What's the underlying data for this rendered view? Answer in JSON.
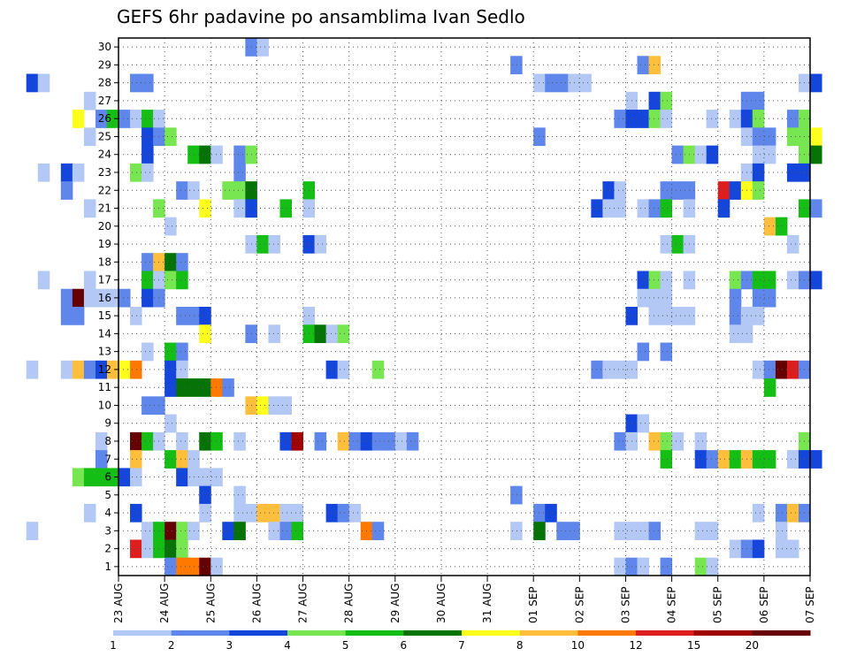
{
  "chart_data": {
    "type": "heatmap",
    "title": "GEFS 6hr padavine po ansamblima Ivan Sedlo",
    "xlabel": "",
    "ylabel": "",
    "x_tick_labels": [
      "23 AUG",
      "24 AUG",
      "25 AUG",
      "26 AUG",
      "27 AUG",
      "28 AUG",
      "29 AUG",
      "30 AUG",
      "31 AUG",
      "01 SEP",
      "02 SEP",
      "03 SEP",
      "04 SEP",
      "05 SEP",
      "06 SEP",
      "07 SEP"
    ],
    "x_time_steps_per_day": 4,
    "y_ticks": [
      1,
      2,
      3,
      4,
      5,
      6,
      7,
      8,
      9,
      10,
      11,
      12,
      13,
      14,
      15,
      16,
      17,
      18,
      19,
      20,
      21,
      22,
      23,
      24,
      25,
      26,
      27,
      28,
      29,
      30
    ],
    "grid": true,
    "colorbar": {
      "position": "bottom",
      "labels": [
        "1",
        "2",
        "3",
        "4",
        "5",
        "6",
        "7",
        "8",
        "10",
        "12",
        "15",
        "20"
      ],
      "colors": [
        "#b4c8f5",
        "#5f87eb",
        "#1446dc",
        "#78e650",
        "#14be14",
        "#057305",
        "#ffff1e",
        "#ffbe3c",
        "#ff7800",
        "#dc1e1e",
        "#a00000",
        "#640000"
      ]
    },
    "cells": [
      [
        30,
        25.75,
        1
      ],
      [
        30,
        26,
        0
      ],
      [
        29,
        31.5,
        1
      ],
      [
        29,
        34.25,
        1
      ],
      [
        29,
        34.5,
        7
      ],
      [
        28,
        21,
        2
      ],
      [
        28,
        21.25,
        0
      ],
      [
        28,
        23.25,
        1
      ],
      [
        28,
        23.5,
        1
      ],
      [
        28,
        32,
        0
      ],
      [
        28,
        32.25,
        1
      ],
      [
        28,
        32.5,
        1
      ],
      [
        28,
        32.75,
        0
      ],
      [
        28,
        33,
        0
      ],
      [
        28,
        37.75,
        0
      ],
      [
        28,
        38,
        2
      ],
      [
        27,
        22.25,
        0
      ],
      [
        27,
        34,
        0
      ],
      [
        27,
        34.5,
        2
      ],
      [
        27,
        34.75,
        3
      ],
      [
        27,
        36.5,
        1
      ],
      [
        27,
        36.75,
        1
      ],
      [
        26,
        19.5,
        0
      ],
      [
        26,
        22,
        6
      ],
      [
        26,
        22.5,
        1
      ],
      [
        26,
        22.75,
        4
      ],
      [
        26,
        23,
        1
      ],
      [
        26,
        23.25,
        0
      ],
      [
        26,
        23.5,
        4
      ],
      [
        26,
        23.75,
        0
      ],
      [
        26,
        33.75,
        1
      ],
      [
        26,
        34,
        2
      ],
      [
        26,
        34.25,
        2
      ],
      [
        26,
        34.5,
        3
      ],
      [
        26,
        34.75,
        0
      ],
      [
        26,
        35.75,
        0
      ],
      [
        26,
        36.25,
        0
      ],
      [
        26,
        36.5,
        2
      ],
      [
        26,
        36.75,
        3
      ],
      [
        26,
        37.5,
        1
      ],
      [
        26,
        37.75,
        3
      ],
      [
        25,
        22.25,
        0
      ],
      [
        25,
        23.5,
        2
      ],
      [
        25,
        23.75,
        1
      ],
      [
        25,
        24,
        3
      ],
      [
        25,
        32,
        1
      ],
      [
        25,
        36.5,
        0
      ],
      [
        25,
        36.75,
        1
      ],
      [
        25,
        37,
        1
      ],
      [
        25,
        37.5,
        3
      ],
      [
        25,
        37.75,
        3
      ],
      [
        25,
        38,
        6
      ],
      [
        24,
        23.5,
        2
      ],
      [
        24,
        24.5,
        4
      ],
      [
        24,
        24.75,
        5
      ],
      [
        24,
        25,
        0
      ],
      [
        24,
        25.5,
        1
      ],
      [
        24,
        25.75,
        3
      ],
      [
        24,
        35,
        1
      ],
      [
        24,
        35.25,
        3
      ],
      [
        24,
        35.5,
        0
      ],
      [
        24,
        35.75,
        2
      ],
      [
        24,
        36.75,
        0
      ],
      [
        24,
        37,
        0
      ],
      [
        24,
        37.75,
        3
      ],
      [
        24,
        38,
        5
      ],
      [
        23,
        21.25,
        0
      ],
      [
        23,
        21.75,
        2
      ],
      [
        23,
        22,
        0
      ],
      [
        23,
        23.25,
        3
      ],
      [
        23,
        23.5,
        0
      ],
      [
        23,
        25.5,
        1
      ],
      [
        23,
        36.5,
        0
      ],
      [
        23,
        36.75,
        2
      ],
      [
        23,
        37.5,
        2
      ],
      [
        23,
        37.75,
        2
      ],
      [
        22,
        19.25,
        0
      ],
      [
        22,
        21.75,
        1
      ],
      [
        22,
        24.25,
        1
      ],
      [
        22,
        24.5,
        0
      ],
      [
        22,
        25.25,
        3
      ],
      [
        22,
        25.5,
        3
      ],
      [
        22,
        25.75,
        5
      ],
      [
        22,
        27,
        4
      ],
      [
        22,
        33.5,
        2
      ],
      [
        22,
        33.75,
        0
      ],
      [
        22,
        34.75,
        1
      ],
      [
        22,
        35,
        1
      ],
      [
        22,
        35.25,
        1
      ],
      [
        22,
        36,
        9
      ],
      [
        22,
        36.25,
        2
      ],
      [
        22,
        36.5,
        6
      ],
      [
        22,
        36.75,
        3
      ],
      [
        21,
        22.25,
        0
      ],
      [
        21,
        23.75,
        3
      ],
      [
        21,
        24.75,
        6
      ],
      [
        21,
        25.5,
        0
      ],
      [
        21,
        25.75,
        2
      ],
      [
        21,
        26.5,
        4
      ],
      [
        21,
        27,
        0
      ],
      [
        21,
        33.25,
        2
      ],
      [
        21,
        33.5,
        0
      ],
      [
        21,
        33.75,
        0
      ],
      [
        21,
        34.25,
        0
      ],
      [
        21,
        34.5,
        1
      ],
      [
        21,
        34.75,
        4
      ],
      [
        21,
        35.25,
        0
      ],
      [
        21,
        36,
        2
      ],
      [
        21,
        37.75,
        4
      ],
      [
        21,
        38,
        1
      ],
      [
        20,
        24,
        0
      ],
      [
        20,
        37,
        7
      ],
      [
        20,
        37.25,
        4
      ],
      [
        19,
        25.75,
        0
      ],
      [
        19,
        26,
        4
      ],
      [
        19,
        26.25,
        0
      ],
      [
        19,
        27,
        2
      ],
      [
        19,
        27.25,
        0
      ],
      [
        19,
        34.75,
        0
      ],
      [
        19,
        35,
        4
      ],
      [
        19,
        35.25,
        0
      ],
      [
        19,
        37.5,
        0
      ],
      [
        18,
        23.5,
        1
      ],
      [
        18,
        23.75,
        7
      ],
      [
        18,
        24,
        5
      ],
      [
        18,
        24.25,
        1
      ],
      [
        17,
        21.25,
        0
      ],
      [
        17,
        22.25,
        0
      ],
      [
        17,
        23.5,
        4
      ],
      [
        17,
        23.75,
        0
      ],
      [
        17,
        24,
        3
      ],
      [
        17,
        24.25,
        4
      ],
      [
        17,
        34.25,
        2
      ],
      [
        17,
        34.5,
        3
      ],
      [
        17,
        34.75,
        0
      ],
      [
        17,
        35.25,
        0
      ],
      [
        17,
        36.25,
        3
      ],
      [
        17,
        36.5,
        1
      ],
      [
        17,
        36.75,
        4
      ],
      [
        17,
        37,
        4
      ],
      [
        17,
        37.5,
        0
      ],
      [
        17,
        37.75,
        1
      ],
      [
        17,
        38,
        2
      ],
      [
        16,
        21.75,
        1
      ],
      [
        16,
        22,
        11
      ],
      [
        16,
        22.25,
        0
      ],
      [
        16,
        22.5,
        0
      ],
      [
        16,
        22.75,
        0
      ],
      [
        16,
        23,
        1
      ],
      [
        16,
        23.5,
        2
      ],
      [
        16,
        23.75,
        1
      ],
      [
        16,
        34.25,
        0
      ],
      [
        16,
        34.5,
        0
      ],
      [
        16,
        34.75,
        0
      ],
      [
        16,
        36.25,
        1
      ],
      [
        16,
        36.75,
        1
      ],
      [
        16,
        37,
        1
      ],
      [
        15,
        21.75,
        1
      ],
      [
        15,
        22,
        1
      ],
      [
        15,
        23.25,
        0
      ],
      [
        15,
        24.25,
        1
      ],
      [
        15,
        24.5,
        1
      ],
      [
        15,
        24.75,
        2
      ],
      [
        15,
        27,
        0
      ],
      [
        15,
        34,
        2
      ],
      [
        15,
        34.5,
        0
      ],
      [
        15,
        34.75,
        0
      ],
      [
        15,
        35,
        0
      ],
      [
        15,
        35.25,
        0
      ],
      [
        15,
        36.25,
        1
      ],
      [
        15,
        36.5,
        0
      ],
      [
        15,
        36.75,
        0
      ],
      [
        14,
        24.75,
        6
      ],
      [
        14,
        25.75,
        1
      ],
      [
        14,
        26.25,
        0
      ],
      [
        14,
        27,
        4
      ],
      [
        14,
        27.25,
        5
      ],
      [
        14,
        27.5,
        0
      ],
      [
        14,
        27.75,
        3
      ],
      [
        14,
        36.25,
        0
      ],
      [
        14,
        36.5,
        0
      ],
      [
        13,
        23.5,
        0
      ],
      [
        13,
        24,
        4
      ],
      [
        13,
        24.25,
        1
      ],
      [
        13,
        34.25,
        1
      ],
      [
        13,
        34.75,
        1
      ],
      [
        12,
        21,
        0
      ],
      [
        12,
        21.75,
        0
      ],
      [
        12,
        22,
        7
      ],
      [
        12,
        22.25,
        1
      ],
      [
        12,
        22.5,
        2
      ],
      [
        12,
        22.75,
        7
      ],
      [
        12,
        23,
        6
      ],
      [
        12,
        23.25,
        8
      ],
      [
        12,
        24,
        2
      ],
      [
        12,
        24.25,
        0
      ],
      [
        12,
        27.5,
        2
      ],
      [
        12,
        27.75,
        0
      ],
      [
        12,
        28.5,
        3
      ],
      [
        12,
        33.25,
        1
      ],
      [
        12,
        33.5,
        0
      ],
      [
        12,
        33.75,
        0
      ],
      [
        12,
        34,
        0
      ],
      [
        12,
        36.75,
        0
      ],
      [
        12,
        37,
        1
      ],
      [
        12,
        37.25,
        11
      ],
      [
        12,
        37.5,
        9
      ],
      [
        12,
        37.75,
        1
      ],
      [
        11,
        24,
        2
      ],
      [
        11,
        24.25,
        5
      ],
      [
        11,
        24.5,
        5
      ],
      [
        11,
        24.75,
        5
      ],
      [
        11,
        25,
        8
      ],
      [
        11,
        25.25,
        1
      ],
      [
        11,
        37,
        4
      ],
      [
        10,
        23.5,
        1
      ],
      [
        10,
        23.75,
        1
      ],
      [
        10,
        25.75,
        7
      ],
      [
        10,
        26,
        6
      ],
      [
        10,
        26.25,
        0
      ],
      [
        10,
        26.5,
        0
      ],
      [
        9,
        24,
        0
      ],
      [
        9,
        34,
        2
      ],
      [
        9,
        34.25,
        0
      ],
      [
        8,
        22.5,
        0
      ],
      [
        8,
        23.25,
        11
      ],
      [
        8,
        23.5,
        4
      ],
      [
        8,
        23.75,
        0
      ],
      [
        8,
        24.25,
        0
      ],
      [
        8,
        24.75,
        5
      ],
      [
        8,
        25,
        4
      ],
      [
        8,
        25.5,
        0
      ],
      [
        8,
        26.5,
        2
      ],
      [
        8,
        26.75,
        10
      ],
      [
        8,
        27.25,
        1
      ],
      [
        8,
        27.75,
        7
      ],
      [
        8,
        28,
        1
      ],
      [
        8,
        28.25,
        2
      ],
      [
        8,
        28.5,
        1
      ],
      [
        8,
        28.75,
        1
      ],
      [
        8,
        29,
        0
      ],
      [
        8,
        29.25,
        1
      ],
      [
        8,
        33.75,
        1
      ],
      [
        8,
        34,
        0
      ],
      [
        8,
        34.5,
        7
      ],
      [
        8,
        34.75,
        3
      ],
      [
        8,
        35,
        0
      ],
      [
        8,
        35.5,
        0
      ],
      [
        8,
        37.75,
        3
      ],
      [
        7,
        22.5,
        1
      ],
      [
        7,
        23.25,
        7
      ],
      [
        7,
        24,
        4
      ],
      [
        7,
        24.25,
        7
      ],
      [
        7,
        24.5,
        0
      ],
      [
        7,
        34.75,
        4
      ],
      [
        7,
        35.5,
        2
      ],
      [
        7,
        35.75,
        1
      ],
      [
        7,
        36,
        7
      ],
      [
        7,
        36.25,
        4
      ],
      [
        7,
        36.5,
        7
      ],
      [
        7,
        36.75,
        4
      ],
      [
        7,
        37,
        4
      ],
      [
        7,
        37.5,
        0
      ],
      [
        7,
        37.75,
        2
      ],
      [
        7,
        38,
        2
      ],
      [
        6,
        22,
        3
      ],
      [
        6,
        22.25,
        4
      ],
      [
        6,
        22.5,
        4
      ],
      [
        6,
        22.75,
        4
      ],
      [
        6,
        23,
        2
      ],
      [
        6,
        23.25,
        0
      ],
      [
        6,
        24.25,
        2
      ],
      [
        6,
        24.5,
        0
      ],
      [
        6,
        24.75,
        0
      ],
      [
        6,
        25,
        0
      ],
      [
        5,
        24.75,
        2
      ],
      [
        5,
        25.5,
        0
      ],
      [
        5,
        31.5,
        1
      ],
      [
        4,
        22.25,
        0
      ],
      [
        4,
        23.25,
        2
      ],
      [
        4,
        24.75,
        0
      ],
      [
        4,
        25.5,
        0
      ],
      [
        4,
        25.75,
        0
      ],
      [
        4,
        26,
        7
      ],
      [
        4,
        26.25,
        7
      ],
      [
        4,
        26.5,
        0
      ],
      [
        4,
        26.75,
        0
      ],
      [
        4,
        27.5,
        2
      ],
      [
        4,
        27.75,
        1
      ],
      [
        4,
        28,
        0
      ],
      [
        4,
        32,
        1
      ],
      [
        4,
        32.25,
        2
      ],
      [
        4,
        36.75,
        0
      ],
      [
        4,
        37.25,
        1
      ],
      [
        4,
        37.5,
        7
      ],
      [
        4,
        37.75,
        1
      ],
      [
        3,
        21,
        0
      ],
      [
        3,
        23.5,
        0
      ],
      [
        3,
        23.75,
        4
      ],
      [
        3,
        24,
        11
      ],
      [
        3,
        24.25,
        3
      ],
      [
        3,
        24.5,
        0
      ],
      [
        3,
        25.25,
        2
      ],
      [
        3,
        25.5,
        5
      ],
      [
        3,
        26.25,
        0
      ],
      [
        3,
        26.5,
        1
      ],
      [
        3,
        26.75,
        4
      ],
      [
        3,
        28.25,
        8
      ],
      [
        3,
        28.5,
        1
      ],
      [
        3,
        31.5,
        0
      ],
      [
        3,
        32,
        5
      ],
      [
        3,
        32.5,
        1
      ],
      [
        3,
        32.75,
        1
      ],
      [
        3,
        33.75,
        0
      ],
      [
        3,
        34,
        0
      ],
      [
        3,
        34.25,
        0
      ],
      [
        3,
        34.5,
        1
      ],
      [
        3,
        35.5,
        0
      ],
      [
        3,
        35.75,
        0
      ],
      [
        3,
        37.25,
        0
      ],
      [
        2,
        23.25,
        9
      ],
      [
        2,
        23.5,
        0
      ],
      [
        2,
        23.75,
        4
      ],
      [
        2,
        24,
        5
      ],
      [
        2,
        24.25,
        3
      ],
      [
        2,
        36.25,
        0
      ],
      [
        2,
        36.5,
        1
      ],
      [
        2,
        36.75,
        2
      ],
      [
        2,
        37.25,
        0
      ],
      [
        2,
        37.5,
        0
      ],
      [
        1,
        24,
        1
      ],
      [
        1,
        24.25,
        8
      ],
      [
        1,
        24.5,
        8
      ],
      [
        1,
        24.75,
        11
      ],
      [
        1,
        25,
        0
      ],
      [
        1,
        33.75,
        0
      ],
      [
        1,
        34,
        1
      ],
      [
        1,
        34.25,
        0
      ],
      [
        1,
        34.75,
        1
      ],
      [
        1,
        35.5,
        3
      ],
      [
        1,
        35.75,
        0
      ]
    ]
  }
}
